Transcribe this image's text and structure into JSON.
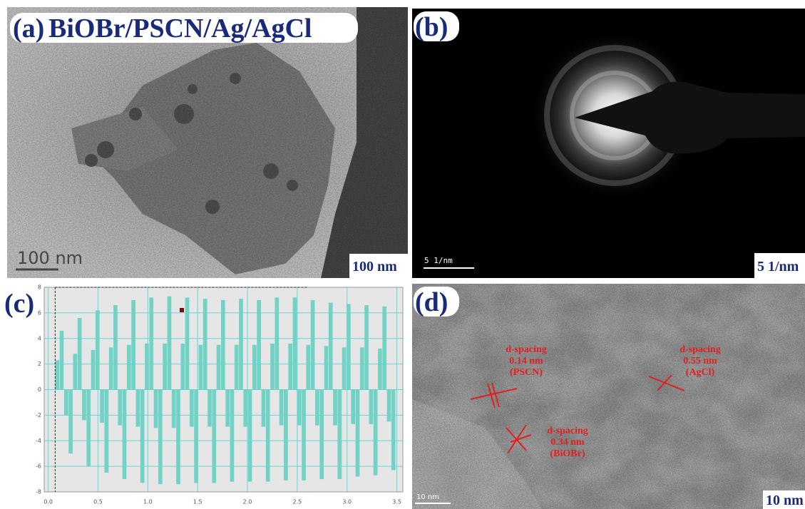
{
  "panels": {
    "a": {
      "label": "(a)",
      "title": "BiOBr/PSCN/Ag/AgCl",
      "scale_bar": "100 nm",
      "scale_box": "100 nm"
    },
    "b": {
      "label": "(b)",
      "scale_bar": "5 1/nm",
      "scale_box": "5 1/nm"
    },
    "c": {
      "label": "(c)"
    },
    "d": {
      "label": "(d)",
      "annotations": [
        {
          "lines": [
            "d-spacing",
            "0.14 nm",
            "(PSCN)"
          ]
        },
        {
          "lines": [
            "d-spacing",
            "0.34 nm",
            "(BiOBr)"
          ]
        },
        {
          "lines": [
            "d-spacing",
            "0.55 nm",
            "(AgCl)"
          ]
        }
      ],
      "scale_bar": "10 nm",
      "scale_box": "10 nm"
    }
  },
  "chart_data": {
    "type": "histogram",
    "color": "#72d2c6",
    "bins": [
      0.07,
      0.115,
      0.16,
      0.205,
      0.25,
      0.295,
      0.34,
      0.385,
      0.43,
      0.475,
      0.52,
      0.565,
      0.61,
      0.655,
      0.7,
      0.745,
      0.79,
      0.835,
      0.88,
      0.925,
      0.97,
      1.015,
      1.06,
      1.105,
      1.15,
      1.195,
      1.24,
      1.285,
      1.33,
      1.375,
      1.42,
      1.465,
      1.51,
      1.555,
      1.6,
      1.645,
      1.69,
      1.735,
      1.78,
      1.825,
      1.87,
      1.915,
      1.96,
      2.005,
      2.05,
      2.095,
      2.14,
      2.185,
      2.23,
      2.275,
      2.32,
      2.365,
      2.41,
      2.455,
      2.5,
      2.545,
      2.59,
      2.635,
      2.68,
      2.725,
      2.77,
      2.815,
      2.86,
      2.905,
      2.95,
      2.995,
      3.04,
      3.085,
      3.13,
      3.175,
      3.22,
      3.265,
      3.31,
      3.355,
      3.4,
      3.445,
      3.49
    ],
    "values": [
      2.3,
      4.6,
      -2,
      -5,
      2.8,
      5.6,
      -2.4,
      -6,
      3.1,
      6.2,
      -2.6,
      -6.5,
      3.3,
      6.6,
      -2.8,
      -7,
      3.5,
      7,
      -2.9,
      -7.3,
      3.6,
      7.2,
      -3,
      -7.4,
      3.6,
      7.3,
      -3,
      -7.4,
      3.6,
      7.2,
      -2.9,
      -7.3,
      3.5,
      7.1,
      -2.9,
      -7.3,
      3.5,
      7,
      -2.9,
      -7.2,
      3.5,
      7.1,
      -2.9,
      -7.2,
      3.5,
      7,
      -2.9,
      -7.2,
      3.6,
      7.2,
      -2.8,
      -7.1,
      3.6,
      7.2,
      -2.8,
      -7.1,
      3.5,
      7,
      -2.8,
      -7,
      3.4,
      6.8,
      -2.8,
      -7,
      3.3,
      6.7,
      -2.7,
      -6.8,
      3.3,
      6.6,
      -2.7,
      -6.7,
      3.2,
      6.5,
      -2.5,
      -6.3
    ],
    "xlim": [
      -0.04,
      3.56
    ],
    "ylim": [
      -8,
      8
    ],
    "xticks": [
      {
        "value": 0,
        "label": "0.0"
      },
      0.5,
      {
        "value": 1,
        "label": "1.0"
      },
      1.5,
      {
        "value": 2,
        "label": "2.0"
      },
      2.5,
      {
        "value": 3,
        "label": "3.0"
      },
      3.5
    ],
    "yticks": [
      8,
      6,
      4,
      2,
      0,
      -2,
      -4,
      -6,
      -8
    ],
    "grid": true
  }
}
